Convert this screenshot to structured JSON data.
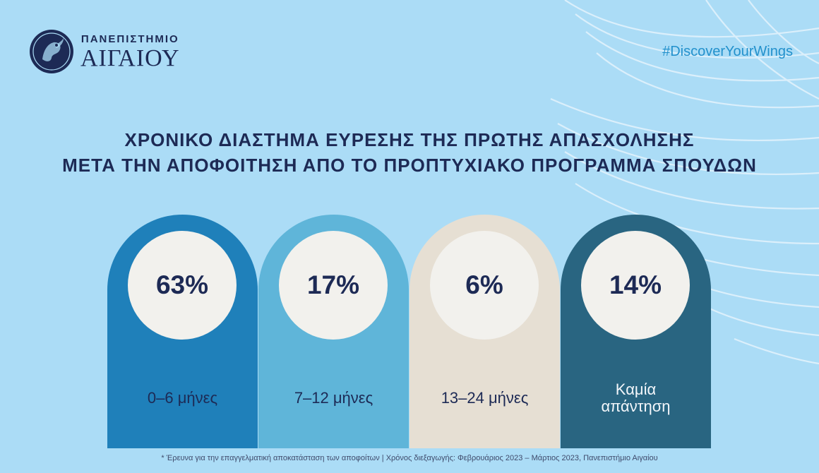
{
  "header": {
    "logo": {
      "line1": "ΠΑΝΕΠΙΣΤΗΜΙΟ",
      "line2": "ΑΙΓΑΙΟΥ"
    },
    "hashtag": "#DiscoverYourWings"
  },
  "title": {
    "line1": "ΧΡΟΝΙΚΟ ΔΙΑΣΤΗΜΑ ΕΥΡΕΣΗΣ ΤΗΣ ΠΡΩΤΗΣ ΑΠΑΣΧΟΛΗΣΗΣ",
    "line2": "ΜΕΤΑ ΤΗΝ ΑΠΟΦΟΙΤΗΣΗ ΑΠΟ ΤΟ ΠΡΟΠΤΥΧΙΑΚΟ ΠΡΟΓΡΑΜΜΑ ΣΠΟΥΔΩΝ"
  },
  "chart_data": {
    "type": "bar",
    "title": "ΧΡΟΝΙΚΟ ΔΙΑΣΤΗΜΑ ΕΥΡΕΣΗΣ ΤΗΣ ΠΡΩΤΗΣ ΑΠΑΣΧΟΛΗΣΗΣ ΜΕΤΑ ΤΗΝ ΑΠΟΦΟΙΤΗΣΗ ΑΠΟ ΤΟ ΠΡΟΠΤΥΧΙΑΚΟ ΠΡΟΓΡΑΜΜΑ ΣΠΟΥΔΩΝ",
    "unit": "%",
    "categories": [
      "0–6 μήνες",
      "7–12 μήνες",
      "13–24 μήνες",
      "Καμία απάντηση"
    ],
    "values": [
      63,
      17,
      6,
      14
    ],
    "value_labels": [
      "63%",
      "17%",
      "6%",
      "14%"
    ],
    "colors": [
      "#1f80ba",
      "#5fb5d9",
      "#e6dfd3",
      "#296581"
    ]
  },
  "footnote": "* Έρευνα για την επαγγελματική αποκατάσταση των αποφοίτων | Χρόνος διεξαγωγής: Φεβρουάριος 2023 – Μάρτιος 2023, Πανεπιστήμιο Αιγαίου"
}
